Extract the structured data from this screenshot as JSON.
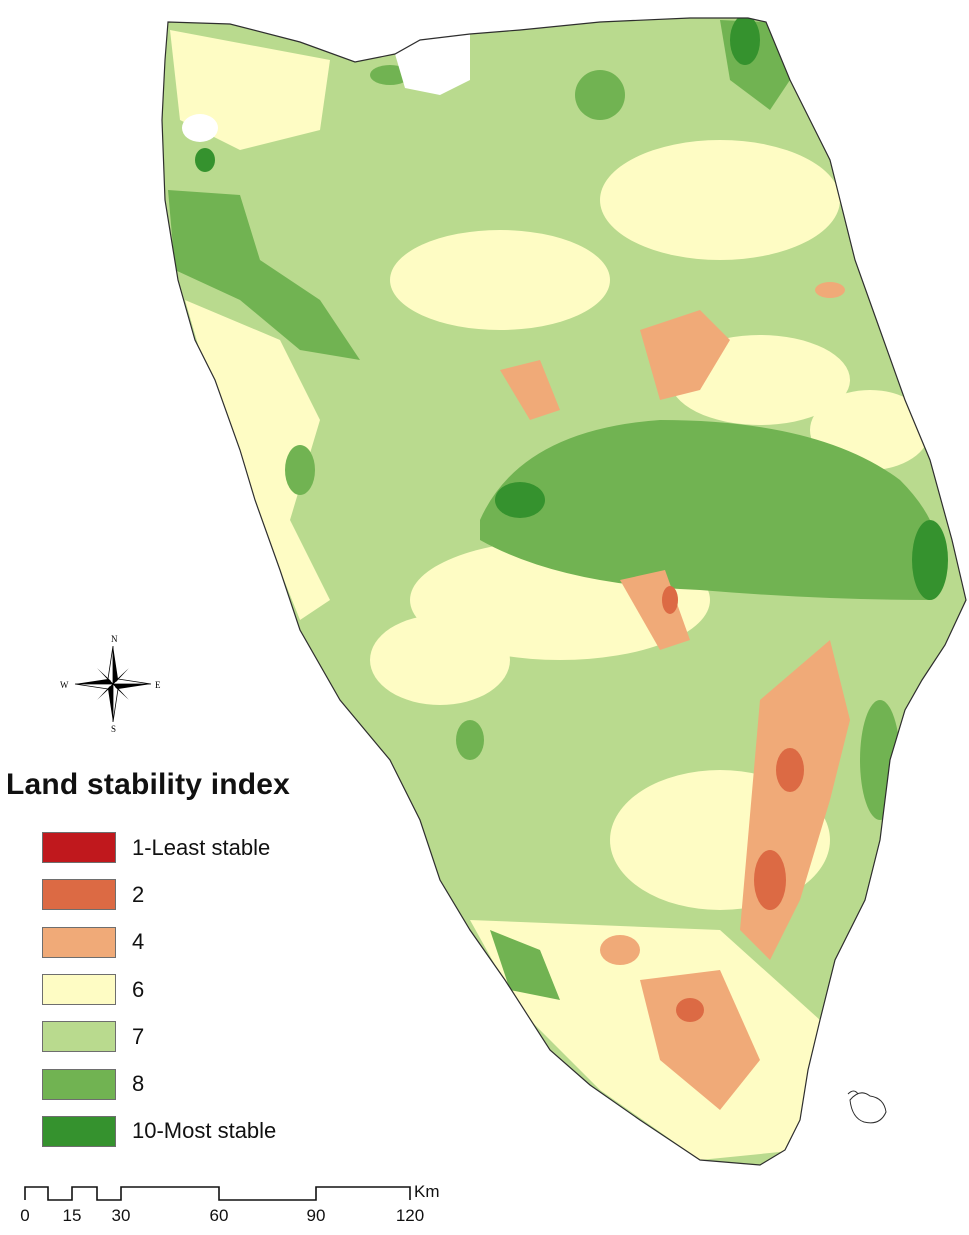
{
  "map": {
    "legend_title": "Land stability index",
    "classes": [
      {
        "label": "1-Least stable",
        "color": "#c0181d"
      },
      {
        "label": "2",
        "color": "#dc6a44"
      },
      {
        "label": "4",
        "color": "#f0aa78"
      },
      {
        "label": "6",
        "color": "#fefcc4"
      },
      {
        "label": "7",
        "color": "#b9da8e"
      },
      {
        "label": "8",
        "color": "#71b352"
      },
      {
        "label": "10-Most stable",
        "color": "#35922e"
      }
    ],
    "north_arrow": {
      "n": "N",
      "s": "S",
      "e": "E",
      "w": "W"
    },
    "scale_bar": {
      "unit": "Km",
      "ticks": [
        "0",
        "15",
        "30",
        "60",
        "90",
        "120"
      ]
    }
  }
}
